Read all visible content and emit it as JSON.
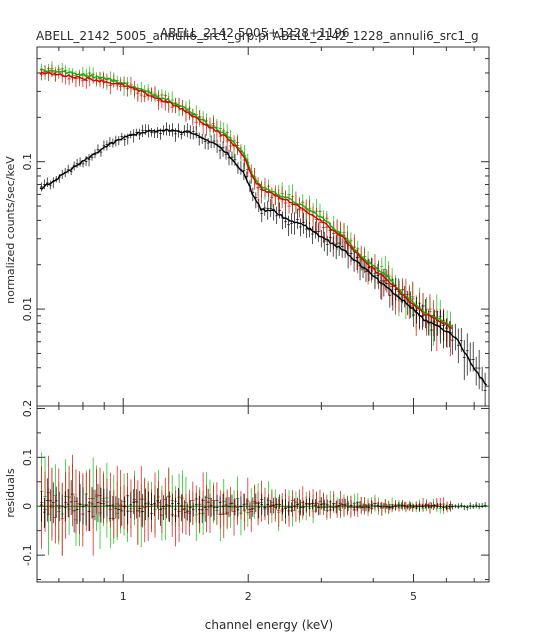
{
  "chart_data": {
    "type": "line",
    "title": "ABELL_2142 5005+1228+1196",
    "subtitle": "ABELL_2142_5005_annuli6_src1_grp.pi ABELL_2142_1228_annuli6_src1_g",
    "xlabel": "channel energy (keV)",
    "x_scale": "log",
    "xlim": [
      0.62,
      7.6
    ],
    "x_ticks": [
      1,
      2,
      5
    ],
    "top_panel": {
      "ylabel": "normalized counts/sec/keV",
      "y_scale": "log",
      "ylim": [
        0.0022,
        0.6
      ],
      "y_ticks": [
        0.01,
        0.1
      ],
      "series": [
        {
          "color": "#000000",
          "x": [
            0.63,
            0.7,
            0.8,
            0.9,
            1.0,
            1.1,
            1.2,
            1.3,
            1.45,
            1.6,
            1.75,
            1.85,
            1.95,
            2.05,
            2.15,
            2.3,
            2.5,
            2.7,
            3.0,
            3.4,
            3.8,
            4.3,
            4.8,
            5.3,
            5.8,
            6.3,
            7.0,
            7.5
          ],
          "y": [
            0.065,
            0.078,
            0.1,
            0.125,
            0.145,
            0.158,
            0.162,
            0.162,
            0.158,
            0.14,
            0.12,
            0.1,
            0.085,
            0.06,
            0.047,
            0.047,
            0.04,
            0.038,
            0.031,
            0.025,
            0.019,
            0.014,
            0.011,
            0.0085,
            0.0075,
            0.0065,
            0.004,
            0.003
          ]
        },
        {
          "color": "#00bb00",
          "x": [
            0.63,
            0.7,
            0.8,
            0.9,
            1.0,
            1.1,
            1.2,
            1.3,
            1.45,
            1.6,
            1.75,
            1.85,
            1.95,
            2.05,
            2.15,
            2.3,
            2.5,
            2.7,
            3.0,
            3.4,
            3.8,
            4.3,
            4.8,
            5.3,
            5.8,
            6.2
          ],
          "y": [
            0.42,
            0.41,
            0.39,
            0.37,
            0.34,
            0.31,
            0.28,
            0.26,
            0.22,
            0.18,
            0.155,
            0.135,
            0.115,
            0.08,
            0.068,
            0.062,
            0.056,
            0.05,
            0.042,
            0.031,
            0.022,
            0.017,
            0.012,
            0.0095,
            0.0085,
            0.0075
          ]
        },
        {
          "color": "#dd0000",
          "x": [
            0.63,
            0.7,
            0.8,
            0.9,
            1.0,
            1.1,
            1.2,
            1.3,
            1.45,
            1.6,
            1.75,
            1.85,
            1.95,
            2.05,
            2.15,
            2.3,
            2.5,
            2.7,
            3.0,
            3.4,
            3.8,
            4.3,
            4.8,
            5.3,
            5.8,
            6.2
          ],
          "y": [
            0.4,
            0.39,
            0.37,
            0.35,
            0.33,
            0.3,
            0.27,
            0.25,
            0.21,
            0.175,
            0.15,
            0.13,
            0.11,
            0.077,
            0.066,
            0.06,
            0.054,
            0.048,
            0.04,
            0.03,
            0.021,
            0.016,
            0.0118,
            0.0093,
            0.0083,
            0.0073
          ]
        }
      ]
    },
    "bottom_panel": {
      "ylabel": "residuals",
      "ylim": [
        -0.155,
        0.205
      ],
      "y_ticks": [
        -0.1,
        0,
        0.1,
        0.2
      ],
      "model_line": 0
    }
  }
}
